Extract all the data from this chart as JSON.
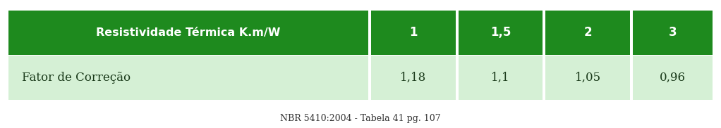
{
  "header_label": "Resistividade Térmica K.m/W",
  "header_values": [
    "1",
    "1,5",
    "2",
    "3"
  ],
  "row_label": "Fator de Correção",
  "row_values": [
    "1,18",
    "1,1",
    "1,05",
    "0,96"
  ],
  "footer": "NBR 5410:2004 - Tabela 41 pg. 107",
  "dark_green": "#1e8a1e",
  "light_green": "#d5f0d5",
  "white_text": "#ffffff",
  "dark_text": "#1a3a1a",
  "header_fontsize": 11.5,
  "value_fontsize": 12,
  "footer_fontsize": 9,
  "bg_color": "#ffffff",
  "fig_width": 10.22,
  "fig_height": 1.82
}
